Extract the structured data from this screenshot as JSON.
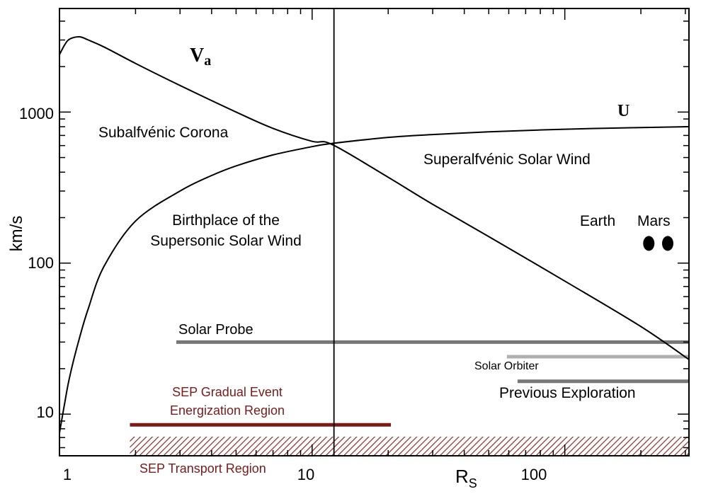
{
  "chart_data": {
    "type": "line",
    "x_scale": "log",
    "y_scale": "log",
    "xlim": [
      1,
      310
    ],
    "ylim": [
      5.3,
      4850
    ],
    "ylabel": "km/s",
    "xlabel": "R",
    "xlabel_subscript": "S",
    "x_tick_labels": [
      {
        "value": 1,
        "label": "1"
      },
      {
        "value": 10,
        "label": "10"
      },
      {
        "value": 100,
        "label": "100"
      }
    ],
    "y_tick_labels": [
      {
        "value": 10,
        "label": "10"
      },
      {
        "value": 100,
        "label": "100"
      },
      {
        "value": 1000,
        "label": "1000"
      }
    ],
    "series": [
      {
        "name": "V",
        "name_subscript": "a",
        "x": [
          1,
          1.05,
          1.1,
          1.2,
          1.3,
          1.5,
          2,
          3,
          5,
          7,
          10,
          12,
          20,
          30,
          50,
          100,
          200,
          310
        ],
        "y": [
          2400,
          2800,
          3050,
          3150,
          3000,
          2700,
          2100,
          1500,
          1000,
          780,
          640,
          610,
          370,
          245,
          150,
          76,
          38,
          23
        ]
      },
      {
        "name": "U",
        "x": [
          1,
          1.05,
          1.1,
          1.2,
          1.3,
          1.5,
          2,
          3,
          4,
          5,
          7,
          10,
          12,
          20,
          30,
          50,
          100,
          200,
          310
        ],
        "y": [
          7.5,
          12,
          18,
          32,
          50,
          95,
          190,
          300,
          380,
          440,
          520,
          590,
          620,
          680,
          710,
          740,
          770,
          790,
          800
        ]
      }
    ],
    "reference_lines": [
      {
        "type": "vertical",
        "x": 12.2,
        "color": "#000000"
      }
    ],
    "bars": [
      {
        "label": "Solar Probe",
        "x_start": 2.9,
        "x_end": 310,
        "y": 30,
        "color": "#777777"
      },
      {
        "label": "Solar Orbiter",
        "x_start": 59,
        "x_end": 310,
        "y": 24,
        "color": "#b0b0b0"
      },
      {
        "label": "Previous Exploration",
        "x_start": 65,
        "x_end": 310,
        "y": 16.5,
        "color": "#777777"
      },
      {
        "label": "SEP Gradual Event Energization Region",
        "x_start": 1.9,
        "x_end": 20.5,
        "y": 8.5,
        "color": "#7a1a1a"
      },
      {
        "label": "SEP Transport Region",
        "x_start": 1.9,
        "x_end": 310,
        "y": 6.2,
        "color": "#8b2a2a",
        "pattern": "hatched"
      }
    ],
    "points": [
      {
        "label": "Earth",
        "x": 215,
        "y": 135,
        "color": "#000000"
      },
      {
        "label": "Mars",
        "x": 330,
        "y": 135,
        "color": "#000000"
      }
    ],
    "annotations": {
      "subalfvenic": "Subalfvénic Corona",
      "superalfvenic": "Superalfvénic Solar Wind",
      "birthplace_line1": "Birthplace of the",
      "birthplace_line2": "Supersonic Solar Wind",
      "sep_energization_line1": "SEP Gradual Event",
      "sep_energization_line2": "Energization Region",
      "sep_transport": "SEP Transport Region"
    },
    "colors": {
      "curves": "#000000",
      "axes": "#000000",
      "sep": "#7a1a1a",
      "mission_dark": "#777777",
      "mission_light": "#b0b0b0"
    },
    "grid": false,
    "legend": "none"
  }
}
